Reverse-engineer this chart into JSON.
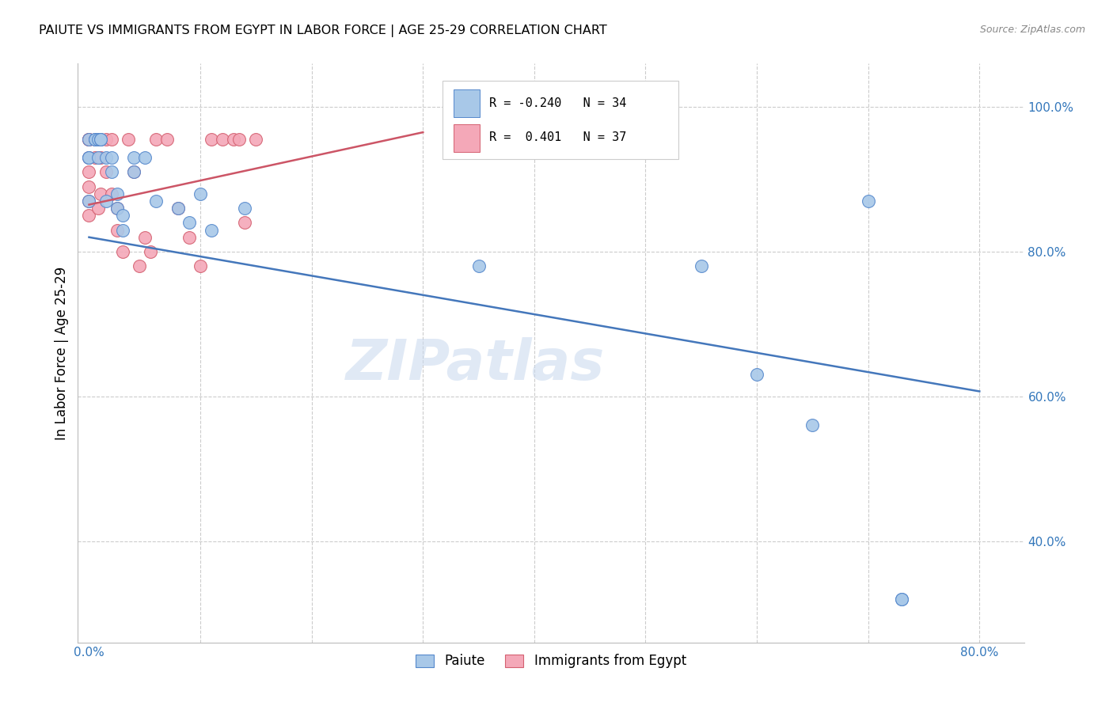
{
  "title": "PAIUTE VS IMMIGRANTS FROM EGYPT IN LABOR FORCE | AGE 25-29 CORRELATION CHART",
  "source": "Source: ZipAtlas.com",
  "ylabel": "In Labor Force | Age 25-29",
  "paiute_R": -0.24,
  "paiute_N": 34,
  "egypt_R": 0.401,
  "egypt_N": 37,
  "paiute_color": "#a8c8e8",
  "egypt_color": "#f4a8b8",
  "paiute_edge_color": "#5588cc",
  "egypt_edge_color": "#d46070",
  "paiute_line_color": "#4477bb",
  "egypt_line_color": "#cc5566",
  "watermark": "ZIPatlas",
  "xlim": [
    -0.01,
    0.84
  ],
  "ylim": [
    0.26,
    1.06
  ],
  "paiute_x": [
    0.0,
    0.0,
    0.0,
    0.0,
    0.005,
    0.005,
    0.008,
    0.008,
    0.01,
    0.01,
    0.015,
    0.015,
    0.02,
    0.02,
    0.025,
    0.025,
    0.03,
    0.03,
    0.04,
    0.04,
    0.05,
    0.06,
    0.08,
    0.09,
    0.1,
    0.11,
    0.14,
    0.35,
    0.55,
    0.6,
    0.65,
    0.7,
    0.73,
    0.73
  ],
  "paiute_y": [
    0.87,
    0.93,
    0.93,
    0.955,
    0.955,
    0.955,
    0.93,
    0.955,
    0.955,
    0.955,
    0.93,
    0.87,
    0.93,
    0.91,
    0.88,
    0.86,
    0.85,
    0.83,
    0.93,
    0.91,
    0.93,
    0.87,
    0.86,
    0.84,
    0.88,
    0.83,
    0.86,
    0.78,
    0.78,
    0.63,
    0.56,
    0.87,
    0.32,
    0.32
  ],
  "egypt_x": [
    0.0,
    0.0,
    0.0,
    0.0,
    0.0,
    0.0,
    0.0,
    0.0,
    0.005,
    0.005,
    0.008,
    0.01,
    0.01,
    0.01,
    0.015,
    0.015,
    0.02,
    0.02,
    0.025,
    0.025,
    0.03,
    0.035,
    0.04,
    0.045,
    0.05,
    0.055,
    0.06,
    0.07,
    0.08,
    0.09,
    0.1,
    0.11,
    0.12,
    0.13,
    0.135,
    0.14,
    0.15
  ],
  "egypt_y": [
    0.955,
    0.955,
    0.955,
    0.93,
    0.91,
    0.89,
    0.87,
    0.85,
    0.955,
    0.93,
    0.86,
    0.955,
    0.93,
    0.88,
    0.955,
    0.91,
    0.955,
    0.88,
    0.86,
    0.83,
    0.8,
    0.955,
    0.91,
    0.78,
    0.82,
    0.8,
    0.955,
    0.955,
    0.86,
    0.82,
    0.78,
    0.955,
    0.955,
    0.955,
    0.955,
    0.84,
    0.955
  ]
}
